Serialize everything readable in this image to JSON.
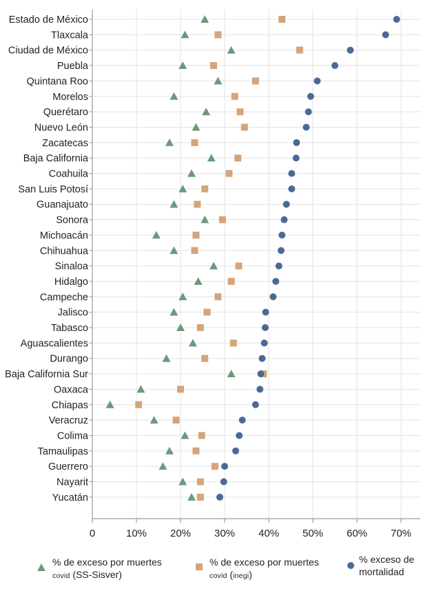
{
  "chart_data": {
    "type": "scatter",
    "orientation": "horizontal dot plot",
    "x_axis": {
      "ticks": [
        0,
        10,
        20,
        30,
        40,
        50,
        60,
        70
      ],
      "tick_labels": [
        "0",
        "10%",
        "20%",
        "30%",
        "40%",
        "50%",
        "60%",
        "70%"
      ],
      "xlim": [
        0,
        73
      ]
    },
    "grid": true,
    "categories": [
      "Estado de México",
      "Tlaxcala",
      "Ciudad de México",
      "Puebla",
      "Quintana Roo",
      "Morelos",
      "Querétaro",
      "Nuevo León",
      "Zacatecas",
      "Baja California",
      "Coahuila",
      "San Luis Potosí",
      "Guanajuato",
      "Sonora",
      "Michoacán",
      "Chihuahua",
      "Sinaloa",
      "Hidalgo",
      "Campeche",
      "Jalisco",
      "Tabasco",
      "Aguascalientes",
      "Durango",
      "Baja California Sur",
      "Oaxaca",
      "Chiapas",
      "Veracruz",
      "Colima",
      "Tamaulipas",
      "Guerrero",
      "Nayarit",
      "Yucatán"
    ],
    "series": [
      {
        "name": "% de exceso por muertes COVID (SS-Sisver)",
        "marker": "triangle",
        "color": "#6b9a78",
        "values": [
          25.5,
          21,
          31.5,
          20.5,
          28.5,
          18.5,
          25.8,
          23.5,
          17.5,
          27,
          22.5,
          20.5,
          18.5,
          25.5,
          14.5,
          18.5,
          27.5,
          24,
          20.5,
          18.5,
          20,
          22.8,
          16.8,
          31.5,
          11,
          4,
          14,
          21,
          17.5,
          16,
          20.5,
          22.5
        ]
      },
      {
        "name": "% de exceso por muertes COVID (INEGI)",
        "marker": "square",
        "color": "#d6a47a",
        "values": [
          43,
          28.5,
          47,
          27.5,
          37,
          32.3,
          33.5,
          34.5,
          23.2,
          33,
          31,
          25.5,
          23.8,
          29.5,
          23.5,
          23.2,
          33.2,
          31.5,
          28.5,
          26,
          24.5,
          32,
          25.5,
          38.8,
          20,
          10.5,
          19,
          24.8,
          23.5,
          27.8,
          24.5,
          24.5
        ]
      },
      {
        "name": "% exceso de mortalidad",
        "marker": "circle",
        "color": "#4a6a96",
        "values": [
          69,
          66.5,
          58.5,
          55,
          51,
          49.5,
          49,
          48.5,
          46.3,
          46.2,
          45.2,
          45.2,
          44,
          43.5,
          43,
          42.8,
          42.3,
          41.6,
          41,
          39.3,
          39.2,
          39,
          38.5,
          38.2,
          38,
          37,
          34,
          33.3,
          32.5,
          30,
          29.8,
          28.9
        ]
      }
    ]
  },
  "legend": {
    "items": [
      {
        "line1": "% de exceso por muertes",
        "line2_sc": "covid",
        "line2_rest": " (SS-Sisver)"
      },
      {
        "line1": "% de exceso por muertes",
        "line2_sc": "covid",
        "line2_mid": " (",
        "line2_sc2": "inegi",
        "line2_end": ")"
      },
      {
        "line1": "% exceso de",
        "line2": "mortalidad"
      }
    ]
  }
}
